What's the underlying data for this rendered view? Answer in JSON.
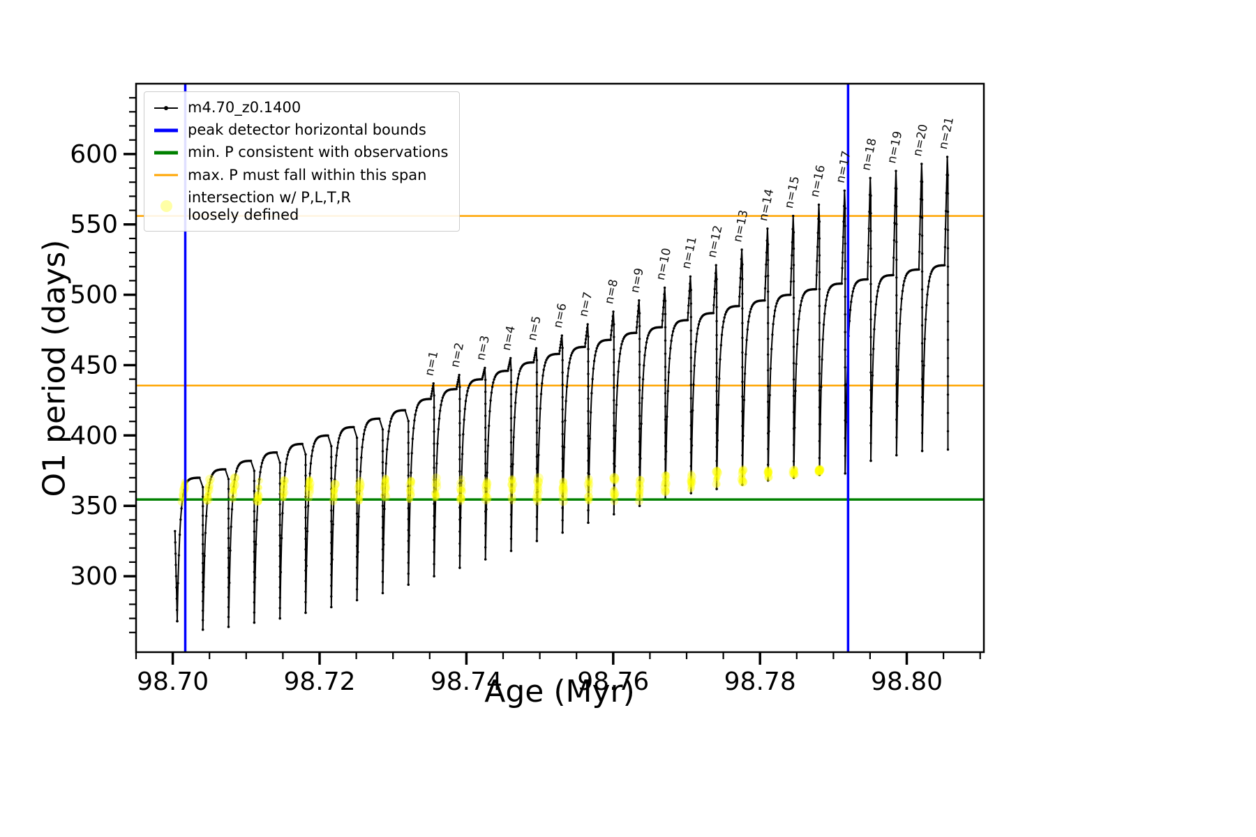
{
  "chart_data": {
    "type": "line",
    "title": "",
    "xlabel": "Age (Myr)",
    "ylabel": "O1 period (days)",
    "xlim": [
      98.695,
      98.8105
    ],
    "ylim": [
      246,
      650
    ],
    "x_ticks": [
      98.7,
      98.72,
      98.74,
      98.76,
      98.78,
      98.8
    ],
    "x_tick_labels": [
      "98.70",
      "98.72",
      "98.74",
      "98.76",
      "98.78",
      "98.80"
    ],
    "y_ticks": [
      300,
      350,
      400,
      450,
      500,
      550,
      600
    ],
    "y_tick_labels": [
      "300",
      "350",
      "400",
      "450",
      "500",
      "550",
      "600"
    ],
    "x_minor_step": 0.005,
    "y_minor_step": 10,
    "grid": false,
    "legend_position": "upper left",
    "series_name": "m4.70_z0.1400",
    "colors": {
      "series": "#000000",
      "peak_bounds": "#0000ff",
      "min_p": "#008000",
      "max_p": "#ffa500",
      "intersection": "#ffff00"
    },
    "legend": {
      "series": "m4.70_z0.1400",
      "bounds": "peak detector horizontal bounds",
      "min_p": "min. P consistent with observations",
      "max_p": "max. P must fall within this span",
      "intersection_line1": "intersection w/ P,L,T,R",
      "intersection_line2": "loosely defined"
    },
    "vlines": {
      "x": [
        98.7017,
        98.792
      ],
      "color": "#0000ff"
    },
    "hline_min": {
      "y": 354.5,
      "color": "#008000"
    },
    "hlines_max": {
      "y": [
        435.5,
        556
      ],
      "color": "#ffa500"
    },
    "intro": {
      "t": 98.7003,
      "p_from": 332,
      "p_to": 268
    },
    "intersections": {
      "color": "#ffff00",
      "opacity": 0.33,
      "p_low": 353,
      "p_high": 375,
      "t_max": 98.79
    },
    "pulses": [
      {
        "t0": 98.7006,
        "t1": 98.7041,
        "pmin": 268,
        "ptop": 370
      },
      {
        "t0": 98.7041,
        "t1": 98.7076,
        "pmin": 262,
        "ptop": 376
      },
      {
        "t0": 98.7076,
        "t1": 98.7111,
        "pmin": 264,
        "ptop": 382
      },
      {
        "t0": 98.7111,
        "t1": 98.7146,
        "pmin": 267,
        "ptop": 388
      },
      {
        "t0": 98.7146,
        "t1": 98.7181,
        "pmin": 270,
        "ptop": 394
      },
      {
        "t0": 98.7181,
        "t1": 98.7216,
        "pmin": 274,
        "ptop": 400
      },
      {
        "t0": 98.7216,
        "t1": 98.7251,
        "pmin": 278,
        "ptop": 406
      },
      {
        "t0": 98.7251,
        "t1": 98.7286,
        "pmin": 283,
        "ptop": 412
      },
      {
        "t0": 98.7286,
        "t1": 98.7321,
        "pmin": 288,
        "ptop": 418
      },
      {
        "t0": 98.7321,
        "t1": 98.7356,
        "pmin": 294,
        "ptop": 426,
        "spike": 437,
        "label": "n=1"
      },
      {
        "t0": 98.7356,
        "t1": 98.7391,
        "pmin": 300,
        "ptop": 433,
        "spike": 443,
        "label": "n=2"
      },
      {
        "t0": 98.7391,
        "t1": 98.7426,
        "pmin": 306,
        "ptop": 440,
        "spike": 448,
        "label": "n=3"
      },
      {
        "t0": 98.7426,
        "t1": 98.7461,
        "pmin": 312,
        "ptop": 446,
        "spike": 455,
        "label": "n=4"
      },
      {
        "t0": 98.7461,
        "t1": 98.7496,
        "pmin": 318,
        "ptop": 452,
        "spike": 462,
        "label": "n=5"
      },
      {
        "t0": 98.7496,
        "t1": 98.7531,
        "pmin": 325,
        "ptop": 458,
        "spike": 471,
        "label": "n=6"
      },
      {
        "t0": 98.7531,
        "t1": 98.7566,
        "pmin": 331,
        "ptop": 463,
        "spike": 479,
        "label": "n=7"
      },
      {
        "t0": 98.7566,
        "t1": 98.7601,
        "pmin": 338,
        "ptop": 468,
        "spike": 488,
        "label": "n=8"
      },
      {
        "t0": 98.7601,
        "t1": 98.7636,
        "pmin": 344,
        "ptop": 473,
        "spike": 496,
        "label": "n=9"
      },
      {
        "t0": 98.7636,
        "t1": 98.7671,
        "pmin": 350,
        "ptop": 477,
        "spike": 505,
        "label": "n=10"
      },
      {
        "t0": 98.7671,
        "t1": 98.7706,
        "pmin": 355,
        "ptop": 482,
        "spike": 513,
        "label": "n=11"
      },
      {
        "t0": 98.7706,
        "t1": 98.7741,
        "pmin": 359,
        "ptop": 487,
        "spike": 521,
        "label": "n=12"
      },
      {
        "t0": 98.7741,
        "t1": 98.7776,
        "pmin": 362,
        "ptop": 492,
        "spike": 532,
        "label": "n=13"
      },
      {
        "t0": 98.7776,
        "t1": 98.7811,
        "pmin": 365,
        "ptop": 496,
        "spike": 547,
        "label": "n=14"
      },
      {
        "t0": 98.7811,
        "t1": 98.7846,
        "pmin": 368,
        "ptop": 500,
        "spike": 556,
        "label": "n=15"
      },
      {
        "t0": 98.7846,
        "t1": 98.7881,
        "pmin": 370,
        "ptop": 504,
        "spike": 564,
        "label": "n=16"
      },
      {
        "t0": 98.7881,
        "t1": 98.7916,
        "pmin": 372,
        "ptop": 508,
        "spike": 574,
        "label": "n=17"
      },
      {
        "t0": 98.7916,
        "t1": 98.7951,
        "pmin": 373,
        "ptop": 511,
        "spike": 583,
        "label": "n=18"
      },
      {
        "t0": 98.7951,
        "t1": 98.7986,
        "pmin": 382,
        "ptop": 514,
        "spike": 588,
        "label": "n=19"
      },
      {
        "t0": 98.7986,
        "t1": 98.8021,
        "pmin": 386,
        "ptop": 518,
        "spike": 593,
        "label": "n=20"
      },
      {
        "t0": 98.8021,
        "t1": 98.8056,
        "pmin": 389,
        "ptop": 521,
        "spike": 598,
        "label": "n=21"
      }
    ],
    "final_drop_to": 390
  }
}
